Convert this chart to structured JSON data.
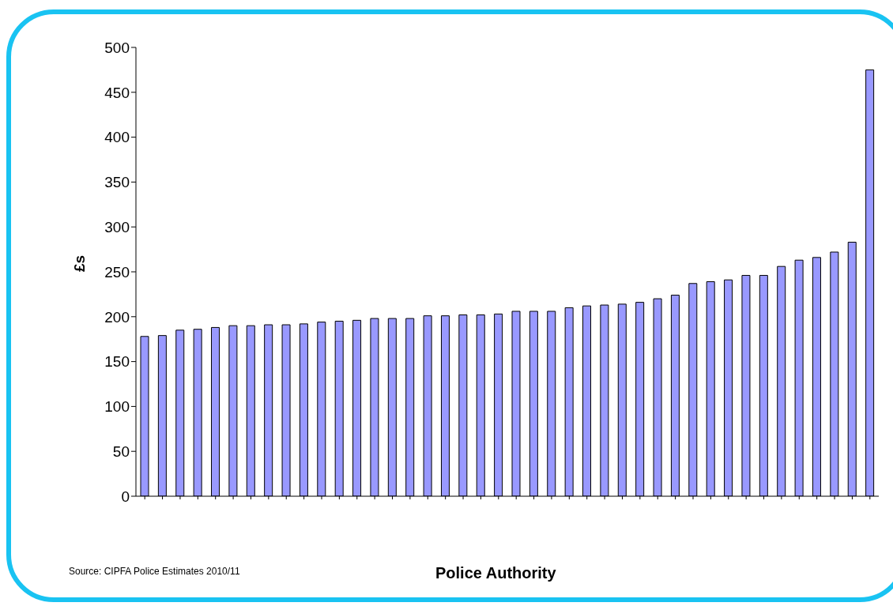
{
  "chart_data": {
    "type": "bar",
    "xlabel": "Police Authority",
    "ylabel": "£s",
    "annotations": [
      "Source: CIPFA Police Estimates 2010/11"
    ],
    "categories": [
      null,
      null,
      null,
      null,
      null,
      null,
      null,
      null,
      null,
      null,
      null,
      null,
      null,
      null,
      null,
      null,
      null,
      null,
      null,
      null,
      null,
      null,
      null,
      null,
      null,
      null,
      null,
      null,
      null,
      null,
      null,
      null,
      null,
      null,
      null,
      null,
      null,
      null,
      null,
      null,
      null,
      null
    ],
    "values": [
      178,
      179,
      185,
      186,
      188,
      190,
      190,
      191,
      191,
      192,
      194,
      195,
      196,
      198,
      198,
      198,
      201,
      201,
      202,
      202,
      203,
      206,
      206,
      206,
      210,
      212,
      213,
      214,
      216,
      220,
      224,
      237,
      239,
      241,
      246,
      246,
      256,
      263,
      266,
      272,
      283,
      475
    ],
    "color": "#9999ff",
    "ylim": [
      0,
      500
    ],
    "yticks": [
      0,
      50,
      100,
      150,
      200,
      250,
      300,
      350,
      400,
      450,
      500
    ],
    "grid": false,
    "legend": false
  }
}
